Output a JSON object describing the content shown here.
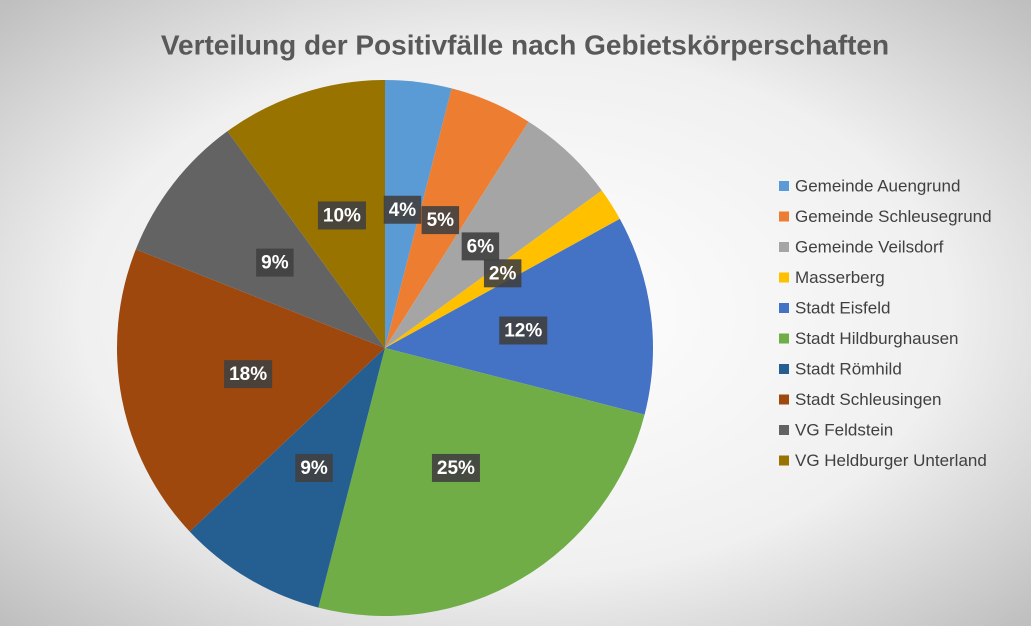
{
  "chart_data": {
    "type": "pie",
    "title": "Verteilung der Positivfälle nach Gebietskörperschaften",
    "categories": [
      "Gemeinde Auengrund",
      "Gemeinde Schleusegrund",
      "Gemeinde Veilsdorf",
      "Masserberg",
      "Stadt Eisfeld",
      "Stadt Hildburghausen",
      "Stadt Römhild",
      "Stadt Schleusingen",
      "VG Feldstein",
      "VG Heldburger Unterland"
    ],
    "values": [
      4,
      5,
      6,
      2,
      12,
      25,
      9,
      18,
      9,
      10
    ],
    "value_labels": [
      "4%",
      "5%",
      "6%",
      "2%",
      "12%",
      "25%",
      "9%",
      "18%",
      "9%",
      "10%"
    ],
    "colors": [
      "#5b9bd5",
      "#ed7d31",
      "#a5a5a5",
      "#ffc000",
      "#4472c4",
      "#70ad47",
      "#255e91",
      "#9e480e",
      "#636363",
      "#997300"
    ],
    "legend": "right"
  }
}
